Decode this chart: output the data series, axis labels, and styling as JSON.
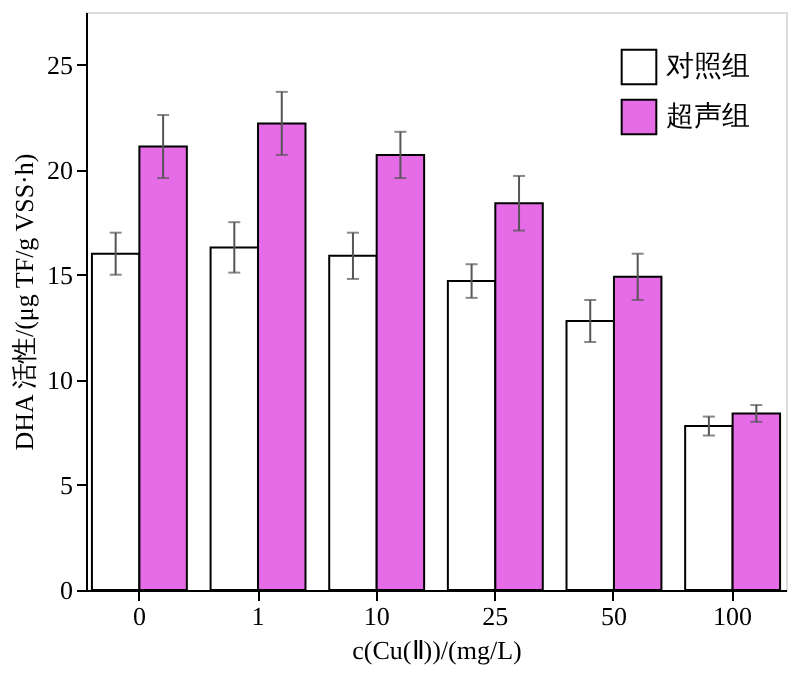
{
  "chart_data": {
    "type": "bar",
    "xlabel": "c(Cu(Ⅱ))/(mg/L)",
    "ylabel": "DHA 活性/(μg TF/g VSS·h)",
    "categories": [
      "0",
      "1",
      "10",
      "25",
      "50",
      "100"
    ],
    "series": [
      {
        "name": "对照组",
        "color": "#ffffff",
        "values": [
          16.0,
          16.3,
          15.9,
          14.7,
          12.8,
          7.8
        ],
        "errors": [
          1.0,
          1.2,
          1.1,
          0.8,
          1.0,
          0.45
        ]
      },
      {
        "name": "超声组",
        "color": "#e66be6",
        "values": [
          21.1,
          22.2,
          20.7,
          18.4,
          14.9,
          8.4
        ],
        "errors": [
          1.5,
          1.5,
          1.1,
          1.3,
          1.1,
          0.4
        ]
      }
    ],
    "ylim": [
      0,
      27.5
    ],
    "yticks": [
      0,
      5,
      10,
      15,
      20,
      25
    ],
    "grid": false,
    "legend": "top right"
  }
}
